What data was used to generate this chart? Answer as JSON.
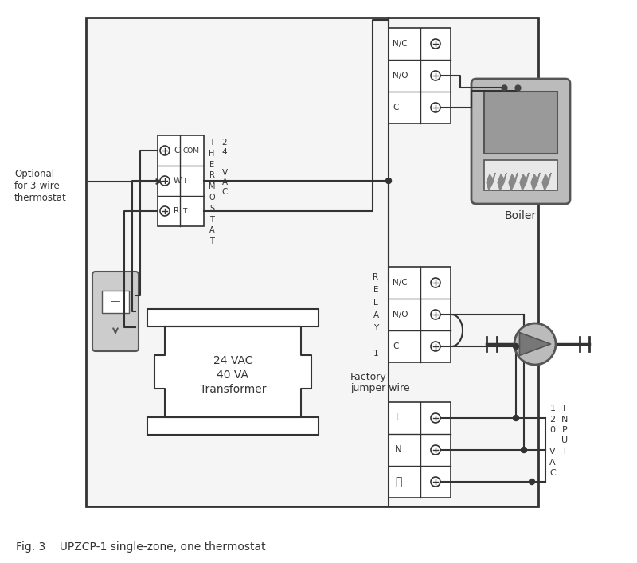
{
  "bg_color": "#ffffff",
  "lc": "#333333",
  "mgray": "#bbbbbb",
  "lgray": "#cccccc",
  "dgray": "#888888",
  "title": "Fig. 3    UPZCP-1 single-zone, one thermostat",
  "transformer_lines": [
    "24 VAC",
    "40 VA",
    "Transformer"
  ],
  "boiler_label": "Boiler",
  "factory_label": [
    "Factory",
    "jumper wire"
  ],
  "optional_lines": [
    "Optional",
    "for 3-wire",
    "thermostat"
  ],
  "figsize": [
    8.0,
    7.07
  ],
  "dpi": 100
}
